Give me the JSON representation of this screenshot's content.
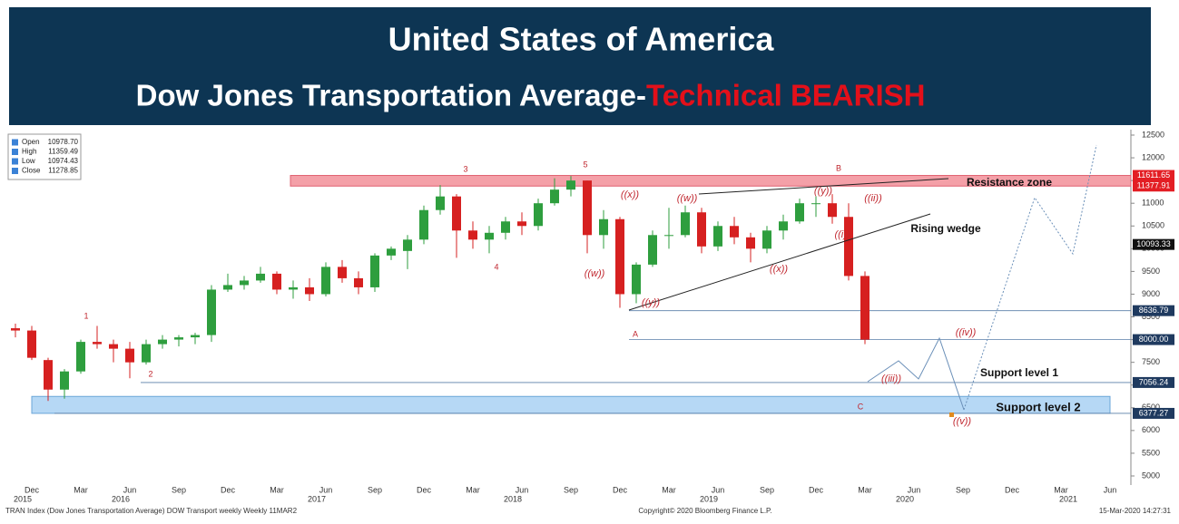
{
  "chart_data": {
    "type": "candlestick",
    "title": "United States of America",
    "subtitle": "Dow Jones Transportation Average- ",
    "subtitle_emphasis": "Technical BEARISH",
    "info_box": [
      {
        "name": "Open",
        "value": "10978.70"
      },
      {
        "name": "High",
        "value": "11359.49"
      },
      {
        "name": "Low",
        "value": "10974.43"
      },
      {
        "name": "Close",
        "value": "11278.85"
      }
    ],
    "x": [
      "2015-11",
      "2015-12",
      "2016-01",
      "2016-02",
      "2016-03",
      "2016-04",
      "2016-05",
      "2016-06",
      "2016-07",
      "2016-08",
      "2016-09",
      "2016-10",
      "2016-11",
      "2016-12",
      "2017-01",
      "2017-02",
      "2017-03",
      "2017-04",
      "2017-05",
      "2017-06",
      "2017-07",
      "2017-08",
      "2017-09",
      "2017-10",
      "2017-11",
      "2017-12",
      "2018-01",
      "2018-02",
      "2018-03",
      "2018-04",
      "2018-05",
      "2018-06",
      "2018-07",
      "2018-08",
      "2018-09",
      "2018-10",
      "2018-11",
      "2018-12",
      "2019-01",
      "2019-02",
      "2019-03",
      "2019-04",
      "2019-05",
      "2019-06",
      "2019-07",
      "2019-08",
      "2019-09",
      "2019-10",
      "2019-11",
      "2019-12",
      "2020-01",
      "2020-02",
      "2020-03"
    ],
    "open": [
      8250,
      8200,
      7550,
      6900,
      7300,
      7950,
      7900,
      7800,
      7500,
      7900,
      8000,
      8050,
      8100,
      9100,
      9200,
      9300,
      9450,
      9100,
      9150,
      9000,
      9600,
      9350,
      9150,
      9850,
      9950,
      10200,
      10850,
      11150,
      10400,
      10200,
      10350,
      10600,
      10500,
      11000,
      11300,
      11500,
      10300,
      10650,
      9000,
      9650,
      10300,
      10300,
      10800,
      10050,
      10500,
      10250,
      10000,
      10400,
      10600,
      11000,
      11000,
      10700,
      9400
    ],
    "high": [
      8350,
      8300,
      7600,
      7350,
      8000,
      8300,
      8000,
      7950,
      8000,
      8100,
      8100,
      8150,
      9200,
      9450,
      9400,
      9600,
      9500,
      9300,
      9350,
      9700,
      9750,
      9500,
      9900,
      10050,
      10300,
      10950,
      11400,
      11200,
      10600,
      10500,
      10700,
      10800,
      11100,
      11550,
      11600,
      11500,
      10850,
      10700,
      9700,
      10400,
      10900,
      10950,
      10900,
      10600,
      10700,
      10350,
      10500,
      10750,
      11100,
      11150,
      11200,
      11000,
      9500
    ],
    "low": [
      8050,
      7550,
      6650,
      6700,
      7250,
      7800,
      7500,
      7150,
      7450,
      7800,
      7850,
      7900,
      7950,
      9050,
      9100,
      9250,
      9000,
      8900,
      8850,
      8950,
      9250,
      9000,
      9050,
      9750,
      9550,
      10100,
      10750,
      9800,
      10000,
      9900,
      10200,
      10300,
      10400,
      10950,
      11150,
      9900,
      10000,
      8700,
      8800,
      9600,
      10000,
      10250,
      9900,
      9950,
      10100,
      9700,
      9900,
      10200,
      10550,
      10700,
      10550,
      9300,
      7900
    ],
    "close": [
      8200,
      7600,
      6900,
      7300,
      7950,
      7900,
      7800,
      7500,
      7900,
      8000,
      8050,
      8100,
      9100,
      9200,
      9300,
      9450,
      9100,
      9150,
      9000,
      9600,
      9350,
      9150,
      9850,
      10000,
      10200,
      10850,
      11150,
      10400,
      10200,
      10350,
      10600,
      10500,
      11000,
      11300,
      11500,
      10300,
      10650,
      9000,
      9650,
      10300,
      10300,
      10800,
      10050,
      10500,
      10250,
      10000,
      10400,
      10600,
      11000,
      11000,
      10700,
      9400,
      8000
    ],
    "up_color": "#2e9e3e",
    "down_color": "#d62020",
    "ylim": [
      4900,
      12650
    ],
    "yticks": [
      5000,
      5500,
      6000,
      6500,
      7000,
      7500,
      8000,
      8500,
      9000,
      9500,
      10000,
      10500,
      11000,
      11500,
      12000,
      12500
    ],
    "xticks": [
      {
        "value": "2015-12",
        "label": "Dec"
      },
      {
        "value": "2016-03",
        "label": "Mar"
      },
      {
        "value": "2016-06",
        "label": "Jun"
      },
      {
        "value": "2016-09",
        "label": "Sep"
      },
      {
        "value": "2016-12",
        "label": "Dec"
      },
      {
        "value": "2017-03",
        "label": "Mar"
      },
      {
        "value": "2017-06",
        "label": "Jun"
      },
      {
        "value": "2017-09",
        "label": "Sep"
      },
      {
        "value": "2017-12",
        "label": "Dec"
      },
      {
        "value": "2018-03",
        "label": "Mar"
      },
      {
        "value": "2018-06",
        "label": "Jun"
      },
      {
        "value": "2018-09",
        "label": "Sep"
      },
      {
        "value": "2018-12",
        "label": "Dec"
      },
      {
        "value": "2019-03",
        "label": "Mar"
      },
      {
        "value": "2019-06",
        "label": "Jun"
      },
      {
        "value": "2019-09",
        "label": "Sep"
      },
      {
        "value": "2019-12",
        "label": "Dec"
      },
      {
        "value": "2020-03",
        "label": "Mar"
      },
      {
        "value": "2020-06",
        "label": "Jun"
      },
      {
        "value": "2020-09",
        "label": "Sep"
      },
      {
        "value": "2020-12",
        "label": "Dec"
      },
      {
        "value": "2021-03",
        "label": "Mar"
      },
      {
        "value": "2021-06",
        "label": "Jun"
      }
    ],
    "year_labels": [
      {
        "value": "2015-12",
        "label": "2015"
      },
      {
        "value": "2016-06",
        "label": "2016"
      },
      {
        "value": "2017-06",
        "label": "2017"
      },
      {
        "value": "2018-06",
        "label": "2018"
      },
      {
        "value": "2019-06",
        "label": "2019"
      },
      {
        "value": "2020-06",
        "label": "2020"
      },
      {
        "value": "2021-04",
        "label": "2021"
      }
    ],
    "levels": [
      {
        "value": 11611.65,
        "color": "#e31e24"
      },
      {
        "value": 11377.91,
        "color": "#e31e24"
      },
      {
        "value": 10093.33,
        "color": "#111111"
      },
      {
        "value": 8636.79,
        "color": "#1f3a5f"
      },
      {
        "value": {
          "value": 8000,
          "label": "8000.00"
        },
        "color": "#1f3a5f"
      },
      {
        "value": 7056.24,
        "color": "#1f3a5f"
      },
      {
        "value": 6377.27,
        "color": "#1f3a5f"
      }
    ],
    "wave_labels": [
      "1",
      "2",
      "3",
      "4",
      "5",
      "B",
      "A",
      "C",
      "((x))",
      "((w))",
      "((y))",
      "((w))",
      "((x))",
      "((y))",
      "((ii))",
      "((i))",
      "((iii))",
      "((iv))",
      "((v))"
    ],
    "zone_labels": [
      "Resistance zone",
      "Rising wedge",
      "Support level 1",
      "Support level 2"
    ],
    "footer_left": "TRAN Index (Dow Jones Transportation Average) DOW Transport weekly  Weekly 11MAR2",
    "footer_center": "Copyright© 2020 Bloomberg Finance L.P.",
    "footer_right": "15-Mar-2020 14:27:31"
  }
}
